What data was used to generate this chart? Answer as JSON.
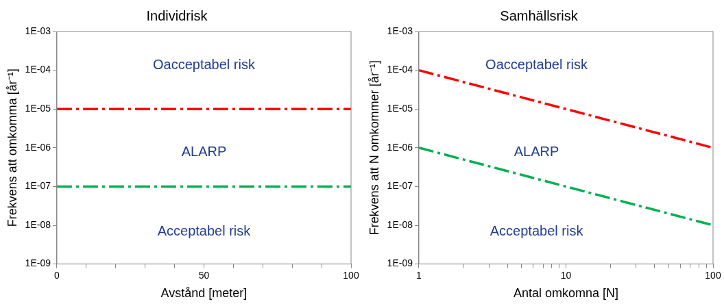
{
  "chart_data": [
    {
      "type": "line",
      "title": "Individrisk",
      "xlabel": "Avstånd [meter]",
      "ylabel": "Frekvens att omkomma [år⁻¹]",
      "x": [
        0,
        100
      ],
      "series": [
        {
          "color": "#ff0000",
          "values": [
            1e-05,
            1e-05
          ]
        },
        {
          "color": "#00b050",
          "values": [
            1e-07,
            1e-07
          ]
        }
      ],
      "xlim": [
        0,
        100
      ],
      "xticks": [
        0,
        {
          "value": 10,
          "label": null
        },
        {
          "value": 20,
          "label": null
        },
        {
          "value": 30,
          "label": null
        },
        {
          "value": 40,
          "label": null
        },
        50,
        {
          "value": 60,
          "label": null
        },
        {
          "value": 70,
          "label": null
        },
        {
          "value": 80,
          "label": null
        },
        {
          "value": 90,
          "label": null
        },
        100
      ],
      "ylim": [
        1e-09,
        0.001
      ],
      "yticks": [
        {
          "value": 1e-09,
          "label": "1E-09"
        },
        {
          "value": 1e-08,
          "label": "1E-08"
        },
        {
          "value": 1e-07,
          "label": "1E-07"
        },
        {
          "value": 1e-06,
          "label": "1E-06"
        },
        {
          "value": 1e-05,
          "label": "1E-05"
        },
        {
          "value": 0.0001,
          "label": "1E-04"
        },
        {
          "value": 0.001,
          "label": "1E-03"
        }
      ],
      "log": "y",
      "grid": false,
      "legend": false,
      "marker": "none",
      "line_style": "dashed",
      "annotations": [
        "Oacceptabel risk",
        "ALARP",
        "Acceptabel risk"
      ]
    },
    {
      "type": "line",
      "title": "Samhällsrisk",
      "xlabel": "Antal omkomna [N]",
      "ylabel": "Frekvens att N omkommer [år⁻¹]",
      "x": [
        1,
        100
      ],
      "series": [
        {
          "color": "#ff0000",
          "values": [
            0.0001,
            1e-06
          ]
        },
        {
          "color": "#00b050",
          "values": [
            1e-06,
            1e-08
          ]
        }
      ],
      "xlim": [
        1,
        100
      ],
      "xticks": [
        1,
        {
          "value": 2,
          "label": null
        },
        {
          "value": 3,
          "label": null
        },
        {
          "value": 4,
          "label": null
        },
        {
          "value": 5,
          "label": null
        },
        {
          "value": 6,
          "label": null
        },
        {
          "value": 7,
          "label": null
        },
        {
          "value": 8,
          "label": null
        },
        {
          "value": 9,
          "label": null
        },
        10,
        {
          "value": 20,
          "label": null
        },
        {
          "value": 30,
          "label": null
        },
        {
          "value": 40,
          "label": null
        },
        {
          "value": 50,
          "label": null
        },
        {
          "value": 60,
          "label": null
        },
        {
          "value": 70,
          "label": null
        },
        {
          "value": 80,
          "label": null
        },
        {
          "value": 90,
          "label": null
        },
        100
      ],
      "ylim": [
        1e-09,
        0.001
      ],
      "yticks": [
        {
          "value": 1e-09,
          "label": "1E-09"
        },
        {
          "value": 1e-08,
          "label": "1E-08"
        },
        {
          "value": 1e-07,
          "label": "1E-07"
        },
        {
          "value": 1e-06,
          "label": "1E-06"
        },
        {
          "value": 1e-05,
          "label": "1E-05"
        },
        {
          "value": 0.0001,
          "label": "1E-04"
        },
        {
          "value": 0.001,
          "label": "1E-03"
        }
      ],
      "log": "xy",
      "grid": false,
      "legend": false,
      "marker": "none",
      "line_style": "dashed",
      "annotations": [
        "Oacceptabel risk",
        "ALARP",
        "Acceptabel risk"
      ]
    }
  ]
}
